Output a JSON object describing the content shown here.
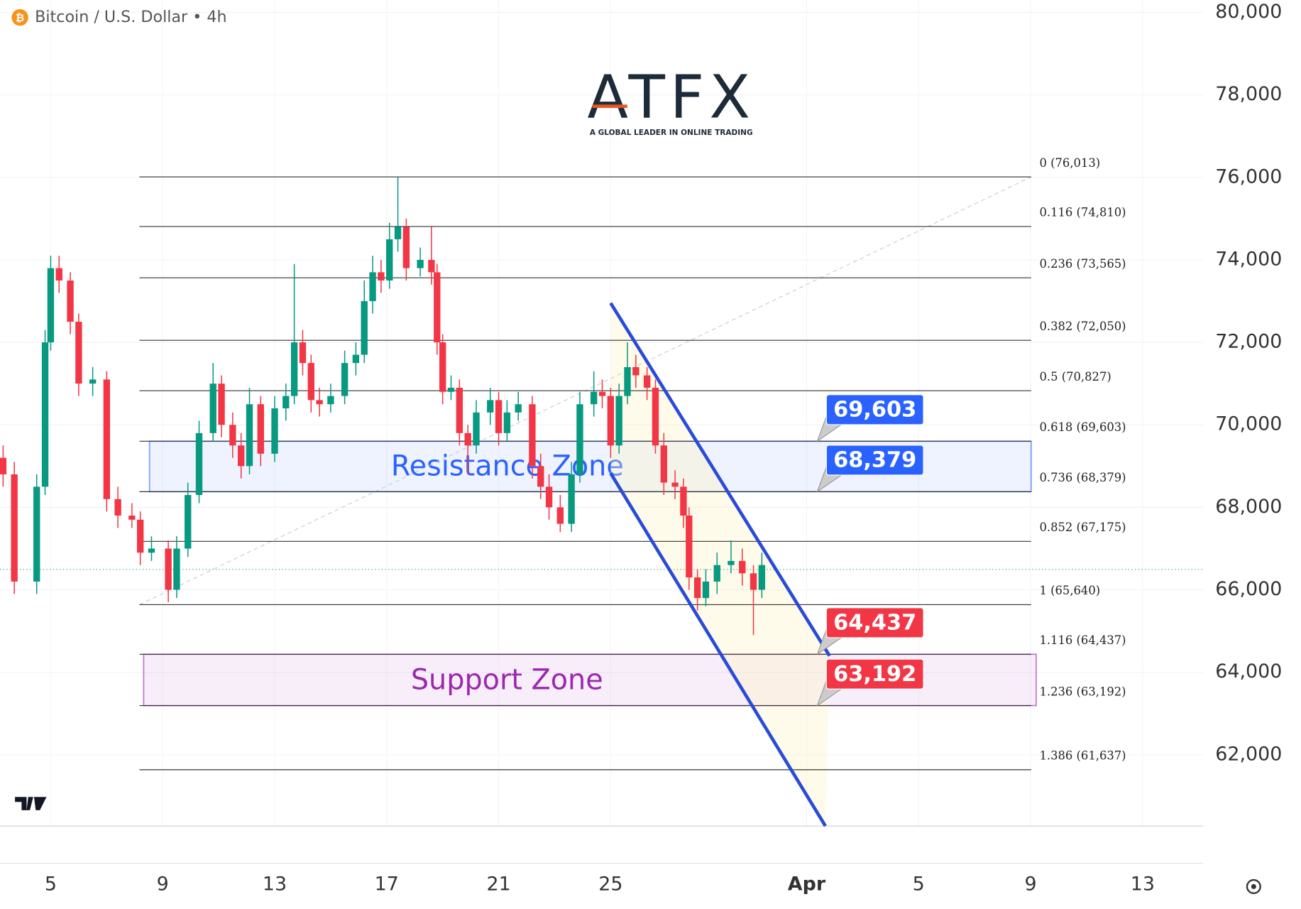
{
  "chart_data": {
    "type": "candlestick",
    "title": "Bitcoin / U.S. Dollar • 4h",
    "logo": {
      "name": "ATFX",
      "tagline": "A GLOBAL LEADER IN ONLINE TRADING"
    },
    "up_color": "#089981",
    "down_color": "#f23645",
    "xlim": [
      3.19,
      46.16
    ],
    "ylim": [
      60273,
      80302
    ],
    "xticks": [
      5,
      9,
      13,
      17,
      21,
      25,
      {
        "value": 32,
        "label": "Apr"
      },
      {
        "value": 36,
        "label": "5"
      },
      {
        "value": 40,
        "label": "9"
      },
      {
        "value": 44,
        "label": "13"
      }
    ],
    "yticks": [
      {
        "value": 62000,
        "label": "62,000"
      },
      {
        "value": 64000,
        "label": "64,000"
      },
      {
        "value": 66000,
        "label": "66,000"
      },
      {
        "value": 68000,
        "label": "68,000"
      },
      {
        "value": 70000,
        "label": "70,000"
      },
      {
        "value": 72000,
        "label": "72,000"
      },
      {
        "value": 74000,
        "label": "74,000"
      },
      {
        "value": 76000,
        "label": "76,000"
      },
      {
        "value": 78000,
        "label": "78,000"
      },
      {
        "value": 80000,
        "label": "80,000"
      }
    ],
    "grid": true,
    "x": [
      3.3,
      3.7,
      4.5,
      4.8,
      5.0,
      5.3,
      5.7,
      6.0,
      6.5,
      7.0,
      7.4,
      7.9,
      8.2,
      8.6,
      9.2,
      9.5,
      9.9,
      10.3,
      10.8,
      11.1,
      11.5,
      11.8,
      12.1,
      12.5,
      13.0,
      13.4,
      13.7,
      14.0,
      14.3,
      14.6,
      15.0,
      15.5,
      15.9,
      16.2,
      16.5,
      16.8,
      17.1,
      17.4,
      17.7,
      18.2,
      18.6,
      18.8,
      19.0,
      19.3,
      19.6,
      19.9,
      20.2,
      20.7,
      21.0,
      21.3,
      21.7,
      22.2,
      22.5,
      22.8,
      23.2,
      23.6,
      23.9,
      24.4,
      24.7,
      25.0,
      25.3,
      25.6,
      25.9,
      26.3,
      26.6,
      26.9,
      27.3,
      27.6,
      27.8,
      28.1,
      28.4,
      28.8,
      29.3,
      29.7,
      30.1,
      30.4
    ],
    "open": [
      69200,
      68800,
      66200,
      68500,
      72000,
      73800,
      73500,
      72500,
      71000,
      71100,
      68200,
      67800,
      67700,
      66900,
      67000,
      66000,
      67000,
      68300,
      69800,
      71000,
      70000,
      69500,
      69000,
      70500,
      69300,
      70400,
      70700,
      72000,
      71500,
      70600,
      70500,
      70700,
      71500,
      71700,
      73000,
      73700,
      73500,
      74500,
      74800,
      73800,
      74000,
      73700,
      72000,
      70800,
      70900,
      69800,
      69500,
      70300,
      70600,
      69800,
      70300,
      70500,
      69000,
      68500,
      68000,
      67600,
      68800,
      70500,
      70800,
      70700,
      69500,
      70700,
      71400,
      71200,
      70900,
      69500,
      68600,
      68500,
      67800,
      66300,
      65800,
      66200,
      66600,
      66700,
      66400,
      66000
    ],
    "high": [
      69500,
      69100,
      68800,
      72300,
      74100,
      74100,
      73700,
      72700,
      71400,
      71300,
      68500,
      68100,
      67900,
      67300,
      67200,
      67300,
      68600,
      70100,
      71500,
      71200,
      70300,
      69800,
      70900,
      70700,
      70700,
      71000,
      73900,
      72300,
      71700,
      70900,
      71000,
      71800,
      72000,
      73500,
      74100,
      74000,
      74900,
      76000,
      75000,
      74300,
      74800,
      73900,
      72200,
      71200,
      71100,
      70000,
      70600,
      70900,
      70800,
      70600,
      70800,
      70700,
      69300,
      68800,
      68300,
      69100,
      70800,
      71300,
      71100,
      70900,
      71000,
      72000,
      71700,
      71400,
      71100,
      69800,
      68900,
      68700,
      68000,
      66500,
      66500,
      66900,
      67200,
      67000,
      66600,
      66900
    ],
    "low": [
      68500,
      65900,
      65900,
      68300,
      71800,
      73200,
      72200,
      70700,
      70700,
      67900,
      67500,
      67500,
      66600,
      66700,
      65700,
      65800,
      66800,
      68100,
      69600,
      69700,
      69200,
      68700,
      68800,
      69000,
      69100,
      70100,
      70500,
      71200,
      70300,
      70200,
      70300,
      70500,
      71200,
      71500,
      72700,
      73200,
      73300,
      74200,
      73500,
      73600,
      73400,
      71700,
      70500,
      70600,
      69500,
      68800,
      69300,
      70000,
      69500,
      69600,
      70100,
      68700,
      68200,
      67700,
      67400,
      67400,
      68600,
      70200,
      70400,
      69200,
      69300,
      70500,
      70900,
      70600,
      69300,
      68300,
      68200,
      67500,
      66000,
      65500,
      65600,
      65900,
      66400,
      66100,
      64900,
      65800
    ],
    "close": [
      68800,
      66200,
      68500,
      72000,
      73800,
      73500,
      72500,
      71000,
      71100,
      68200,
      67800,
      67700,
      66900,
      67000,
      66000,
      67000,
      68300,
      69800,
      71000,
      70000,
      69500,
      69000,
      70500,
      69300,
      70400,
      70700,
      72000,
      71500,
      70600,
      70500,
      70700,
      71500,
      71700,
      73000,
      73700,
      73500,
      74500,
      74800,
      73800,
      74000,
      73700,
      72000,
      70800,
      70900,
      69800,
      69500,
      70300,
      70600,
      69800,
      70300,
      70500,
      69000,
      68500,
      68000,
      67600,
      68800,
      70500,
      70800,
      70700,
      69500,
      70700,
      71400,
      71200,
      70900,
      69500,
      68600,
      68500,
      67800,
      66300,
      65800,
      66200,
      66600,
      66700,
      66400,
      66000,
      66600
    ],
    "last_price": 66493,
    "fib_x": [
      8.17,
      40.02
    ],
    "fib_levels": [
      {
        "label": "0 (76,013)",
        "value": 76013
      },
      {
        "label": "0.116 (74,810)",
        "value": 74810
      },
      {
        "label": "0.236 (73,565)",
        "value": 73565
      },
      {
        "label": "0.382 (72,050)",
        "value": 72050
      },
      {
        "label": "0.5 (70,827)",
        "value": 70827
      },
      {
        "label": "0.618 (69,603)",
        "value": 69603
      },
      {
        "label": "0.736 (68,379)",
        "value": 68379
      },
      {
        "label": "0.852 (67,175)",
        "value": 67175
      },
      {
        "label": "1 (65,640)",
        "value": 65640
      },
      {
        "label": "1.116 (64,437)",
        "value": 64437
      },
      {
        "label": "1.236 (63,192)",
        "value": 63192
      },
      {
        "label": "1.386 (61,637)",
        "value": 61637
      }
    ],
    "fib_trend": {
      "x": [
        8.17,
        40.02
      ],
      "y": [
        65640,
        76013
      ]
    },
    "zones": [
      {
        "label": "Resistance Zone",
        "from": 68379,
        "to": 69603,
        "x": [
          8.53,
          40.02
        ],
        "color": "#2962ff"
      },
      {
        "label": "Support Zone",
        "from": 63192,
        "to": 64437,
        "x": [
          8.32,
          40.2
        ],
        "color": "#9c27b0"
      }
    ],
    "price_tags": {
      "values": [
        69603,
        68379,
        64437,
        63192
      ],
      "value_labels": [
        "69,603",
        "68,379",
        "64,437",
        "63,192"
      ],
      "colors": [
        "#2962ff",
        "#2962ff",
        "#f23645",
        "#f23645"
      ]
    },
    "channel": {
      "upper_x": [
        25.0,
        32.82
      ],
      "upper_y": [
        72954,
        64399
      ],
      "lower_x": [
        25.0,
        32.67
      ],
      "lower_y": [
        68827,
        60273
      ],
      "color": "#2a4bd7"
    }
  }
}
